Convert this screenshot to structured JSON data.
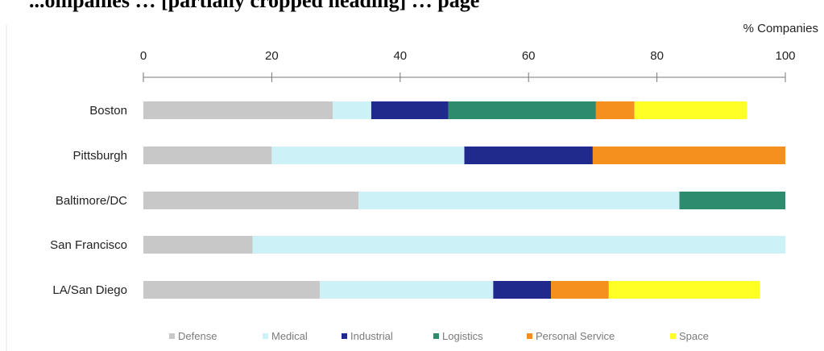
{
  "page": {
    "title": "...ompanies … [partially cropped heading] … page"
  },
  "chart_data": {
    "type": "bar",
    "orientation": "horizontal",
    "stacked": true,
    "title": "",
    "xlabel": "% Companies",
    "ylabel": "",
    "xlim": [
      0,
      100
    ],
    "x_ticks": [
      "0",
      "20",
      "40",
      "60",
      "80",
      "100"
    ],
    "grid": false,
    "legend_position": "bottom",
    "categories": [
      "Boston",
      "Pittsburgh",
      "Baltimore/DC",
      "San Francisco",
      "LA/San Diego"
    ],
    "series": [
      {
        "name": "Defense",
        "color": "#c8c8c8",
        "values": [
          29.5,
          20,
          33.5,
          17,
          27.5
        ]
      },
      {
        "name": "Medical",
        "color": "#ccf2f8",
        "values": [
          6,
          30,
          50,
          83,
          27
        ]
      },
      {
        "name": "Industrial",
        "color": "#1f2a8c",
        "values": [
          12,
          20,
          0,
          0,
          9
        ]
      },
      {
        "name": "Logistics",
        "color": "#2e8b6e",
        "values": [
          23,
          0,
          16.5,
          0,
          0
        ]
      },
      {
        "name": "Personal Service",
        "color": "#f5901e",
        "values": [
          6,
          30,
          0,
          0,
          9
        ]
      },
      {
        "name": "Space",
        "color": "#ffff26",
        "values": [
          17.5,
          0,
          0,
          0,
          23.5
        ]
      }
    ]
  }
}
